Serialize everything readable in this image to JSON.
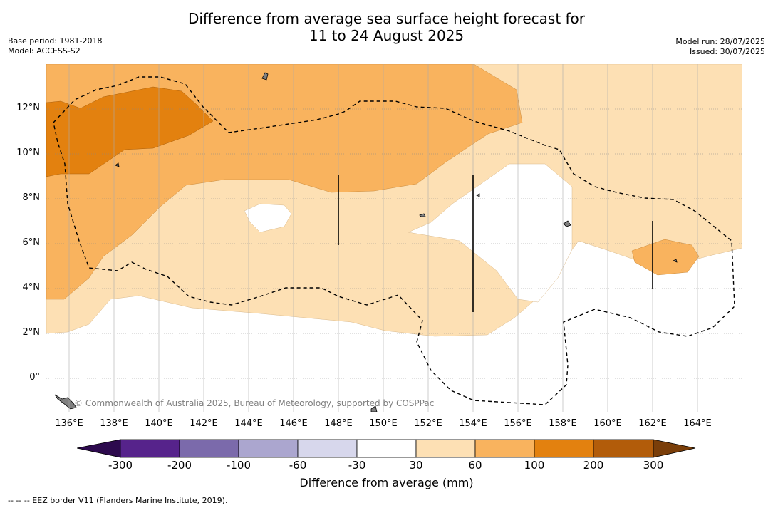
{
  "title_line1": "Difference from average sea surface height forecast for",
  "title_line2": "11 to 24 August 2025",
  "base_period": "Base period: 1981-2018",
  "model": "Model: ACCESS-S2",
  "model_run": "Model run: 28/07/2025",
  "issued": "Issued: 30/07/2025",
  "lat_labels": [
    "12°N",
    "10°N",
    "8°N",
    "6°N",
    "4°N",
    "2°N",
    "0°"
  ],
  "lon_labels": [
    "136°E",
    "138°E",
    "140°E",
    "142°E",
    "144°E",
    "146°E",
    "148°E",
    "150°E",
    "152°E",
    "154°E",
    "156°E",
    "158°E",
    "160°E",
    "162°E",
    "164°E"
  ],
  "copyright": "© Commonwealth of Australia 2025, Bureau of Meteorology, supported by COSPPac",
  "colorbar_labels": [
    "-300",
    "-200",
    "-100",
    "-60",
    "-30",
    "30",
    "60",
    "100",
    "200",
    "300"
  ],
  "colorbar_title": "Difference from average (mm)",
  "eez_legend": "-- -- -- EEZ border V11 (Flanders Marine Institute, 2019).",
  "colors": {
    "under": "#2d0a4e",
    "bins": [
      "#56238b",
      "#7b6aab",
      "#aba6cf",
      "#d7d7ec",
      "#ffffff",
      "#fde0b4",
      "#f9b35e",
      "#e3810f",
      "#b25c0a"
    ],
    "over": "#7a3e09",
    "land": "#808080"
  }
}
